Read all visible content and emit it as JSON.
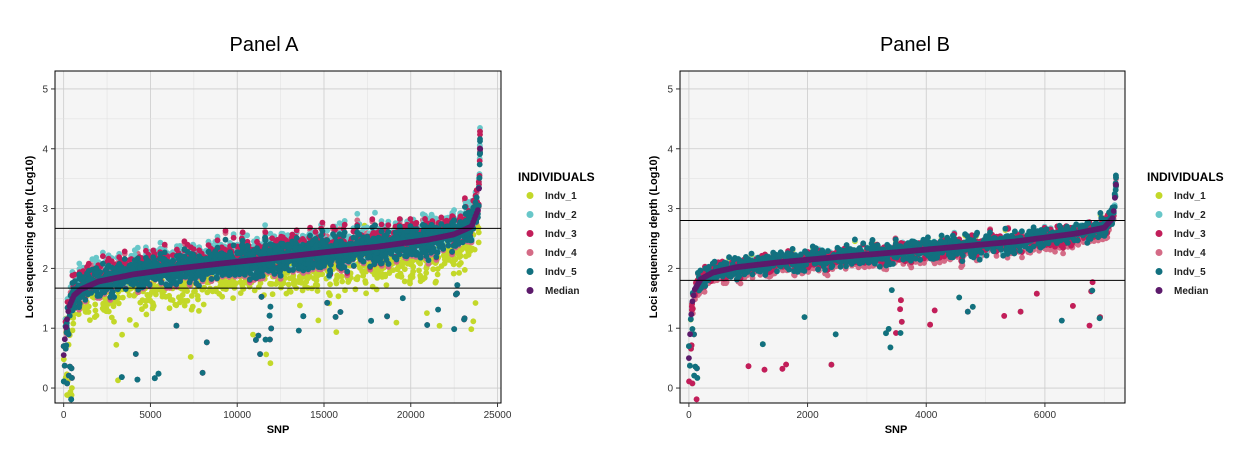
{
  "colors": {
    "Indv_1": "#c3d829",
    "Indv_2": "#68c7c9",
    "Indv_3": "#c21e5a",
    "Indv_4": "#d46b86",
    "Indv_5": "#12707f",
    "Median": "#5c1a6b"
  },
  "chart_data": [
    {
      "type": "scatter",
      "title": "Panel A",
      "xlabel": "SNP",
      "ylabel": "Loci sequencing depth (Log10)",
      "xlim": [
        -500,
        25200
      ],
      "ylim": [
        -0.25,
        5.3
      ],
      "xticks": [
        0,
        5000,
        10000,
        15000,
        20000,
        25000
      ],
      "yticks": [
        0,
        1,
        2,
        3,
        4,
        5
      ],
      "grid": true,
      "hlines": [
        2.67,
        1.67
      ],
      "n_snps": 24000,
      "median_curve": {
        "x": [
          0,
          100,
          300,
          600,
          1000,
          2000,
          4000,
          6000,
          9000,
          12000,
          15000,
          18000,
          21000,
          22500,
          23500,
          23900,
          24000
        ],
        "y": [
          0.55,
          0.95,
          1.35,
          1.55,
          1.65,
          1.78,
          1.9,
          1.98,
          2.08,
          2.17,
          2.27,
          2.36,
          2.48,
          2.57,
          2.7,
          3.0,
          4.0
        ]
      },
      "legend": {
        "title": "INDIVIDUALS",
        "position": "right",
        "entries": [
          "Indv_1",
          "Indv_2",
          "Indv_3",
          "Indv_4",
          "Indv_5",
          "Median"
        ]
      }
    },
    {
      "type": "scatter",
      "title": "Panel B",
      "xlabel": "SNP",
      "ylabel": "Loci sequencing depth (Log10)",
      "xlim": [
        -150,
        7350
      ],
      "ylim": [
        -0.25,
        5.3
      ],
      "xticks": [
        0,
        2000,
        4000,
        6000
      ],
      "yticks": [
        0,
        1,
        2,
        3,
        4,
        5
      ],
      "grid": true,
      "hlines": [
        2.8,
        1.8
      ],
      "n_snps": 7200,
      "median_curve": {
        "x": [
          0,
          20,
          50,
          100,
          200,
          400,
          800,
          1500,
          2500,
          3500,
          4500,
          5500,
          6500,
          7000,
          7150,
          7200
        ],
        "y": [
          0.5,
          0.9,
          1.4,
          1.65,
          1.82,
          1.93,
          2.02,
          2.1,
          2.19,
          2.27,
          2.36,
          2.45,
          2.58,
          2.68,
          2.85,
          3.4
        ]
      },
      "legend": {
        "title": "INDIVIDUALS",
        "position": "right",
        "entries": [
          "Indv_1",
          "Indv_2",
          "Indv_3",
          "Indv_4",
          "Indv_5",
          "Median"
        ]
      }
    }
  ]
}
